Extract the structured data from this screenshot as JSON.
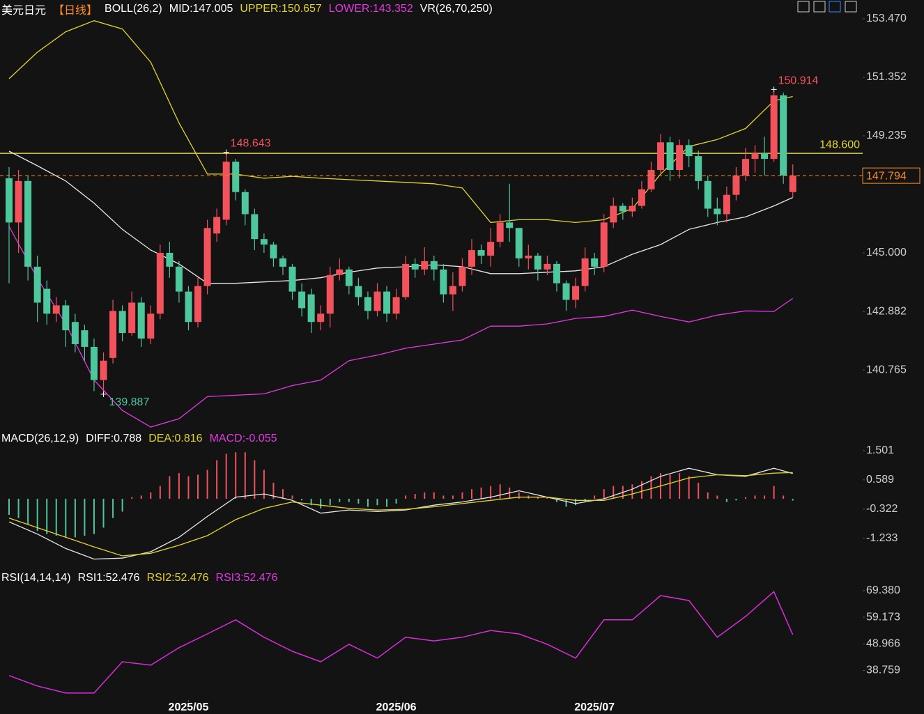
{
  "chart_data": [
    {
      "type": "candlestick",
      "header": [
        {
          "text": "美元日元",
          "color": "#ffffff"
        },
        {
          "text": "【日线】",
          "color": "#ff8a1e"
        },
        {
          "text": "BOLL(26,2)",
          "color": "#ffffff"
        },
        {
          "text": "MID:147.005",
          "color": "#ffffff"
        },
        {
          "text": "UPPER:150.657",
          "color": "#e3d42a"
        },
        {
          "text": "LOWER:143.352",
          "color": "#e33ae3"
        },
        {
          "text": "VR(26,70,250)",
          "color": "#ffffff"
        }
      ],
      "xlim": [
        -0.96,
        90.4
      ],
      "xticks": [
        {
          "value": 19,
          "label": "2025/05"
        },
        {
          "value": 41,
          "label": "2025/06"
        },
        {
          "value": 62,
          "label": "2025/07"
        }
      ],
      "ylim": [
        138.65,
        153.77
      ],
      "yticks": [
        {
          "value": 153.47,
          "label": "153.470"
        },
        151.352,
        149.235,
        {
          "value": 145,
          "label": "145.000"
        },
        142.882,
        140.765
      ],
      "up_color": "#f2525c",
      "down_color": "#4fc79c",
      "open": [
        147.7,
        146.1,
        147.6,
        144.5,
        143.7,
        142.8,
        143.1,
        142.5,
        142.2,
        141.6,
        140.4,
        141.2,
        142.9,
        142.1,
        143.2,
        141.9,
        142.8,
        145.0,
        144.5,
        143.6,
        142.5,
        143.8,
        145.7,
        146.2,
        148.3,
        147.2,
        146.4,
        145.5,
        145.3,
        144.8,
        144.5,
        143.6,
        143.5,
        142.5,
        142.8,
        144.2,
        144.4,
        143.8,
        143.4,
        142.9,
        143.6,
        142.8,
        143.4,
        144.6,
        144.4,
        144.7,
        144.4,
        143.5,
        143.8,
        144.5,
        145.1,
        144.9,
        145.4,
        146.1,
        145.9,
        144.8,
        144.9,
        144.4,
        144.6,
        143.9,
        143.3,
        143.8,
        144.8,
        144.5,
        146.1,
        146.7,
        146.5,
        146.7,
        147.3,
        148.0,
        149.0,
        148.0,
        148.9,
        148.5,
        147.6,
        146.6,
        146.4,
        147.1,
        147.8,
        148.4,
        148.6,
        148.4,
        150.7,
        147.2
      ],
      "high": [
        148.1,
        148.0,
        147.8,
        144.9,
        144.0,
        143.4,
        143.3,
        142.8,
        142.4,
        141.9,
        141.4,
        143.3,
        143.1,
        143.6,
        143.4,
        143.1,
        145.3,
        145.4,
        144.7,
        143.8,
        144.1,
        146.2,
        146.6,
        148.643,
        148.4,
        147.3,
        146.6,
        145.7,
        145.4,
        144.9,
        144.6,
        143.9,
        143.7,
        143.1,
        144.5,
        144.8,
        144.5,
        144.1,
        143.6,
        143.9,
        143.8,
        143.7,
        144.9,
        144.8,
        145.2,
        144.9,
        144.6,
        144.3,
        144.8,
        145.5,
        145.3,
        145.9,
        146.4,
        147.5,
        145.9,
        145.3,
        145.0,
        144.9,
        144.7,
        144.0,
        144.1,
        145.2,
        145.0,
        146.4,
        147.0,
        146.8,
        147.0,
        147.6,
        148.3,
        149.3,
        149.2,
        149.1,
        149.1,
        148.7,
        147.8,
        147.0,
        147.4,
        148.1,
        148.8,
        148.9,
        149.2,
        150.914,
        150.8,
        148.2
      ],
      "low": [
        143.9,
        145.0,
        144.0,
        142.5,
        142.4,
        142.5,
        141.6,
        141.4,
        141.1,
        140.0,
        139.887,
        141.0,
        141.8,
        142.0,
        141.6,
        141.7,
        142.6,
        144.1,
        143.2,
        142.2,
        142.3,
        143.5,
        145.4,
        146.0,
        146.9,
        146.0,
        145.1,
        145.0,
        144.5,
        144.2,
        143.3,
        142.7,
        142.1,
        142.2,
        142.3,
        144.0,
        143.5,
        143.1,
        142.6,
        142.7,
        142.5,
        142.6,
        143.3,
        144.1,
        144.2,
        144.0,
        143.2,
        142.9,
        143.6,
        144.2,
        144.6,
        144.5,
        145.2,
        145.4,
        144.5,
        144.4,
        144.0,
        144.2,
        143.6,
        142.9,
        143.0,
        143.6,
        144.2,
        144.3,
        145.9,
        146.2,
        146.3,
        146.6,
        147.2,
        147.9,
        147.6,
        147.7,
        148.1,
        147.3,
        146.3,
        146.0,
        146.1,
        146.9,
        147.6,
        147.9,
        147.8,
        148.3,
        147.5,
        147.0
      ],
      "close": [
        146.1,
        147.6,
        144.5,
        143.2,
        142.8,
        143.1,
        142.2,
        141.7,
        141.6,
        140.4,
        141.1,
        142.9,
        142.1,
        143.2,
        141.9,
        142.8,
        145.0,
        144.5,
        143.6,
        142.5,
        143.8,
        145.9,
        146.3,
        148.3,
        147.2,
        146.4,
        145.5,
        145.3,
        144.8,
        144.5,
        143.6,
        143.0,
        142.5,
        142.8,
        144.2,
        144.4,
        143.8,
        143.4,
        142.9,
        143.6,
        142.8,
        143.4,
        144.6,
        144.4,
        144.7,
        144.4,
        143.5,
        143.8,
        144.5,
        145.1,
        144.9,
        145.4,
        146.1,
        145.9,
        144.8,
        144.9,
        144.4,
        144.6,
        143.9,
        143.3,
        143.8,
        144.8,
        144.5,
        146.1,
        146.7,
        146.5,
        146.7,
        147.3,
        148.0,
        149.0,
        148.0,
        148.9,
        148.5,
        147.6,
        146.6,
        146.4,
        147.1,
        147.8,
        148.4,
        148.6,
        148.4,
        150.7,
        147.8,
        147.794
      ],
      "labeled_highs": [
        23,
        81
      ],
      "labeled_lows": [
        10
      ],
      "high_label_color": "#f2525c",
      "low_label_color": "#4fc79c",
      "last_price_color": "#ff8a1e",
      "hline": {
        "value": 148.6,
        "label": "148.600",
        "color": "#e3d42a"
      },
      "line_x": [
        0,
        3,
        6,
        9,
        12,
        15,
        18,
        21,
        24,
        27,
        30,
        33,
        36,
        39,
        42,
        45,
        48,
        51,
        54,
        57,
        60,
        63,
        66,
        69,
        72,
        75,
        78,
        81,
        83
      ],
      "lines": [
        {
          "color": "#e3d42a",
          "values": [
            151.3,
            152.26,
            153.0,
            153.4,
            153.1,
            151.9,
            149.7,
            147.85,
            147.85,
            147.7,
            147.77,
            147.7,
            147.65,
            147.6,
            147.55,
            147.5,
            147.35,
            146.1,
            146.2,
            146.2,
            146.1,
            146.2,
            146.6,
            147.85,
            148.85,
            149.1,
            149.5,
            150.5,
            150.657
          ]
        },
        {
          "color": "#e8e8e8",
          "values": [
            148.68,
            148.15,
            147.6,
            146.8,
            145.85,
            145.1,
            144.6,
            143.9,
            143.9,
            143.95,
            144.0,
            144.1,
            144.3,
            144.45,
            144.5,
            144.57,
            144.5,
            144.25,
            144.25,
            144.3,
            144.35,
            144.5,
            144.95,
            145.3,
            145.85,
            146.1,
            146.3,
            146.7,
            147.005
          ]
        },
        {
          "color": "#e33ae3",
          "values": [
            145.96,
            144.07,
            142.43,
            140.4,
            139.3,
            138.7,
            139.0,
            139.8,
            139.85,
            139.9,
            140.2,
            140.4,
            141.1,
            141.3,
            141.55,
            141.7,
            141.85,
            142.35,
            142.35,
            142.43,
            142.63,
            142.7,
            142.93,
            142.7,
            142.5,
            142.75,
            142.9,
            142.88,
            143.352
          ]
        }
      ]
    },
    {
      "type": "macd",
      "header": [
        {
          "text": "MACD(26,12,9)",
          "color": "#ffffff"
        },
        {
          "text": "DIFF:0.788",
          "color": "#ffffff"
        },
        {
          "text": "DEA:0.816",
          "color": "#e3d42a"
        },
        {
          "text": "MACD:-0.055",
          "color": "#e33ae3"
        }
      ],
      "ylim": [
        -2.04,
        1.65
      ],
      "yticks": [
        1.501,
        0.589,
        -0.322,
        -1.233
      ],
      "up_color": "#f2525c",
      "down_color": "#4fc79c",
      "histogram": [
        -0.5,
        -0.6,
        -0.8,
        -1.0,
        -1.1,
        -1.15,
        -1.2,
        -1.2,
        -1.15,
        -1.1,
        -0.9,
        -0.6,
        -0.4,
        0.05,
        0.1,
        0.2,
        0.4,
        0.7,
        0.8,
        0.7,
        0.75,
        0.9,
        1.2,
        1.4,
        1.45,
        1.45,
        1.2,
        0.9,
        0.5,
        0.3,
        0.1,
        -0.05,
        -0.2,
        -0.3,
        -0.2,
        -0.1,
        -0.1,
        -0.15,
        -0.25,
        -0.2,
        -0.25,
        -0.15,
        0.1,
        0.15,
        0.2,
        0.2,
        0.1,
        0.1,
        0.2,
        0.3,
        0.35,
        0.4,
        0.45,
        0.35,
        0.2,
        0.1,
        0.05,
        0.05,
        -0.1,
        -0.25,
        -0.2,
        -0.1,
        0.1,
        0.3,
        0.4,
        0.4,
        0.45,
        0.55,
        0.7,
        0.8,
        0.75,
        0.8,
        0.7,
        0.5,
        0.2,
        0.1,
        -0.1,
        -0.05,
        0.05,
        0.1,
        0.1,
        0.4,
        0.1,
        -0.055
      ],
      "series": [
        {
          "color": "#e8e8e8",
          "values": [
            -0.72,
            -1.1,
            -1.55,
            -1.88,
            -1.85,
            -1.65,
            -1.2,
            -0.55,
            0.05,
            0.15,
            -0.05,
            -0.45,
            -0.35,
            -0.4,
            -0.35,
            -0.2,
            -0.1,
            0.05,
            0.25,
            0.05,
            -0.15,
            0.0,
            0.3,
            0.7,
            0.95,
            0.75,
            0.7,
            0.95,
            0.788
          ]
        },
        {
          "color": "#e3d42a",
          "values": [
            -0.6,
            -0.9,
            -1.2,
            -1.5,
            -1.78,
            -1.7,
            -1.45,
            -1.15,
            -0.65,
            -0.3,
            -0.1,
            -0.2,
            -0.3,
            -0.35,
            -0.33,
            -0.25,
            -0.15,
            -0.05,
            0.05,
            0.05,
            -0.05,
            -0.05,
            0.15,
            0.4,
            0.65,
            0.75,
            0.72,
            0.8,
            0.816
          ]
        }
      ]
    },
    {
      "type": "line",
      "header": [
        {
          "text": "RSI(14,14,14)",
          "color": "#ffffff"
        },
        {
          "text": "RSI1:52.476",
          "color": "#ffffff"
        },
        {
          "text": "RSI2:52.476",
          "color": "#e3d42a"
        },
        {
          "text": "RSI3:52.476",
          "color": "#e33ae3"
        }
      ],
      "ylim": [
        27.4,
        71.5
      ],
      "yticks": [
        {
          "value": 69.38,
          "label": "69.380"
        },
        59.173,
        48.966,
        38.759
      ],
      "series": [
        {
          "color": "#d92ed9",
          "values": [
            36.8,
            32.8,
            30.1,
            30.1,
            42.1,
            40.8,
            47.5,
            52.8,
            58.2,
            51.5,
            46.1,
            42.1,
            48.8,
            43.5,
            51.5,
            50.1,
            51.5,
            54.1,
            52.8,
            48.8,
            43.5,
            58.2,
            58.2,
            67.5,
            65.6,
            51.5,
            59.5,
            69.0,
            52.476
          ]
        }
      ]
    }
  ]
}
